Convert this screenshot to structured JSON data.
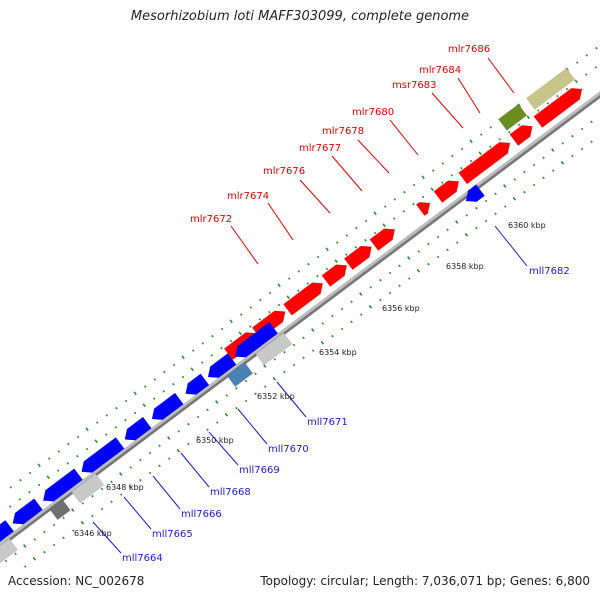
{
  "title": "Mesorhizobium loti MAFF303099, complete genome",
  "footer": {
    "accession": "Accession: NC_002678",
    "summary": "Topology: circular; Length: 7,036,071 bp; Genes: 6,800"
  },
  "colors": {
    "forward_gene": "#ff0000",
    "reverse_gene": "#0000ff",
    "gray_gene": "#c8c8c8",
    "darkgray_gene": "#707070",
    "steelblue_gene": "#4a82b4",
    "olive_gene": "#6b8c21",
    "khaki_gene": "#c9c48a",
    "tick": "#2e8b2e"
  },
  "kbp_labels": [
    "6346 kbp",
    "6348 kbp",
    "6350 kbp",
    "6352 kbp",
    "6354 kbp",
    "6356 kbp",
    "6358 kbp",
    "6360 kbp"
  ],
  "forward_labels": [
    "mlr7672",
    "mlr7674",
    "mlr7676",
    "mlr7677",
    "mlr7678",
    "mlr7680",
    "msr7683",
    "mlr7684",
    "mlr7686"
  ],
  "reverse_labels": [
    "mll7664",
    "mll7665",
    "mll7666",
    "mll7668",
    "mll7669",
    "mll7670",
    "mll7671",
    "mll7682"
  ]
}
